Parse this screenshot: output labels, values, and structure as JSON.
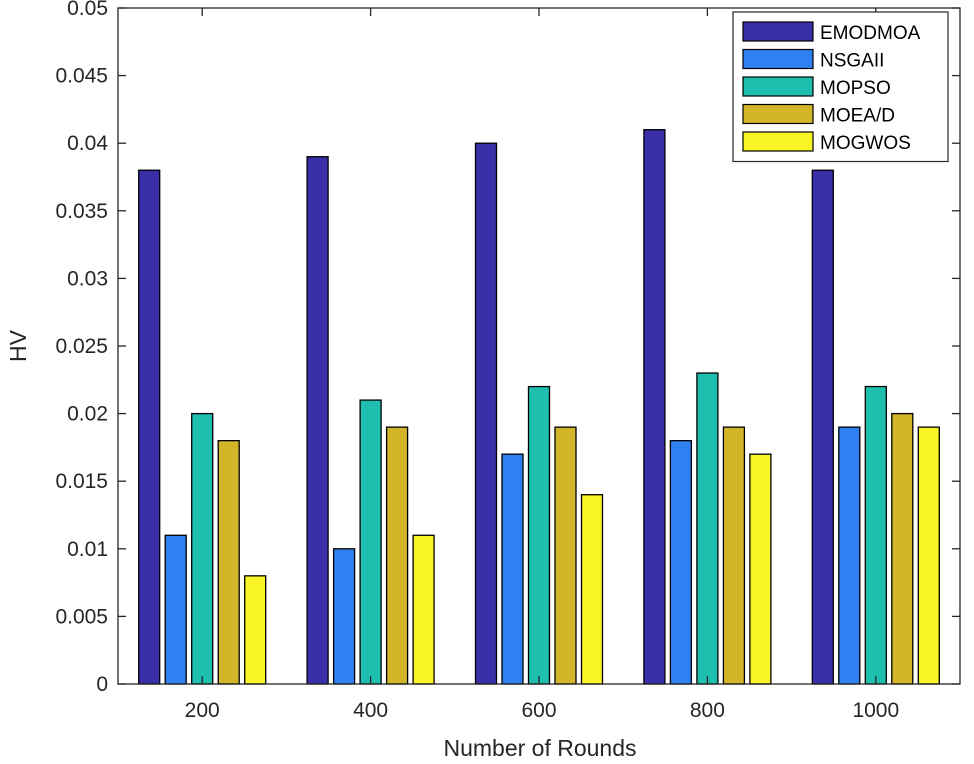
{
  "chart_data": {
    "type": "bar",
    "title": "",
    "xlabel": "Number of Rounds",
    "ylabel": "HV",
    "categories": [
      "200",
      "400",
      "600",
      "800",
      "1000"
    ],
    "ylim": [
      0,
      0.05
    ],
    "yticks": [
      "0",
      "0.005",
      "0.01",
      "0.015",
      "0.02",
      "0.025",
      "0.03",
      "0.035",
      "0.04",
      "0.045",
      "0.05"
    ],
    "series": [
      {
        "name": "EMODMOA",
        "color": "#3a2fa8",
        "values": [
          0.038,
          0.039,
          0.04,
          0.041,
          0.038
        ]
      },
      {
        "name": "NSGAII",
        "color": "#2f80f0",
        "values": [
          0.011,
          0.01,
          0.017,
          0.018,
          0.019
        ]
      },
      {
        "name": "MOPSO",
        "color": "#1fbfaf",
        "values": [
          0.02,
          0.021,
          0.022,
          0.023,
          0.022
        ]
      },
      {
        "name": "MOEA/D",
        "color": "#d3b52a",
        "values": [
          0.018,
          0.019,
          0.019,
          0.019,
          0.02
        ]
      },
      {
        "name": "MOGWOS",
        "color": "#f9f425",
        "values": [
          0.008,
          0.011,
          0.014,
          0.017,
          0.019
        ]
      }
    ],
    "legend_position": "top-right",
    "grid": false
  }
}
